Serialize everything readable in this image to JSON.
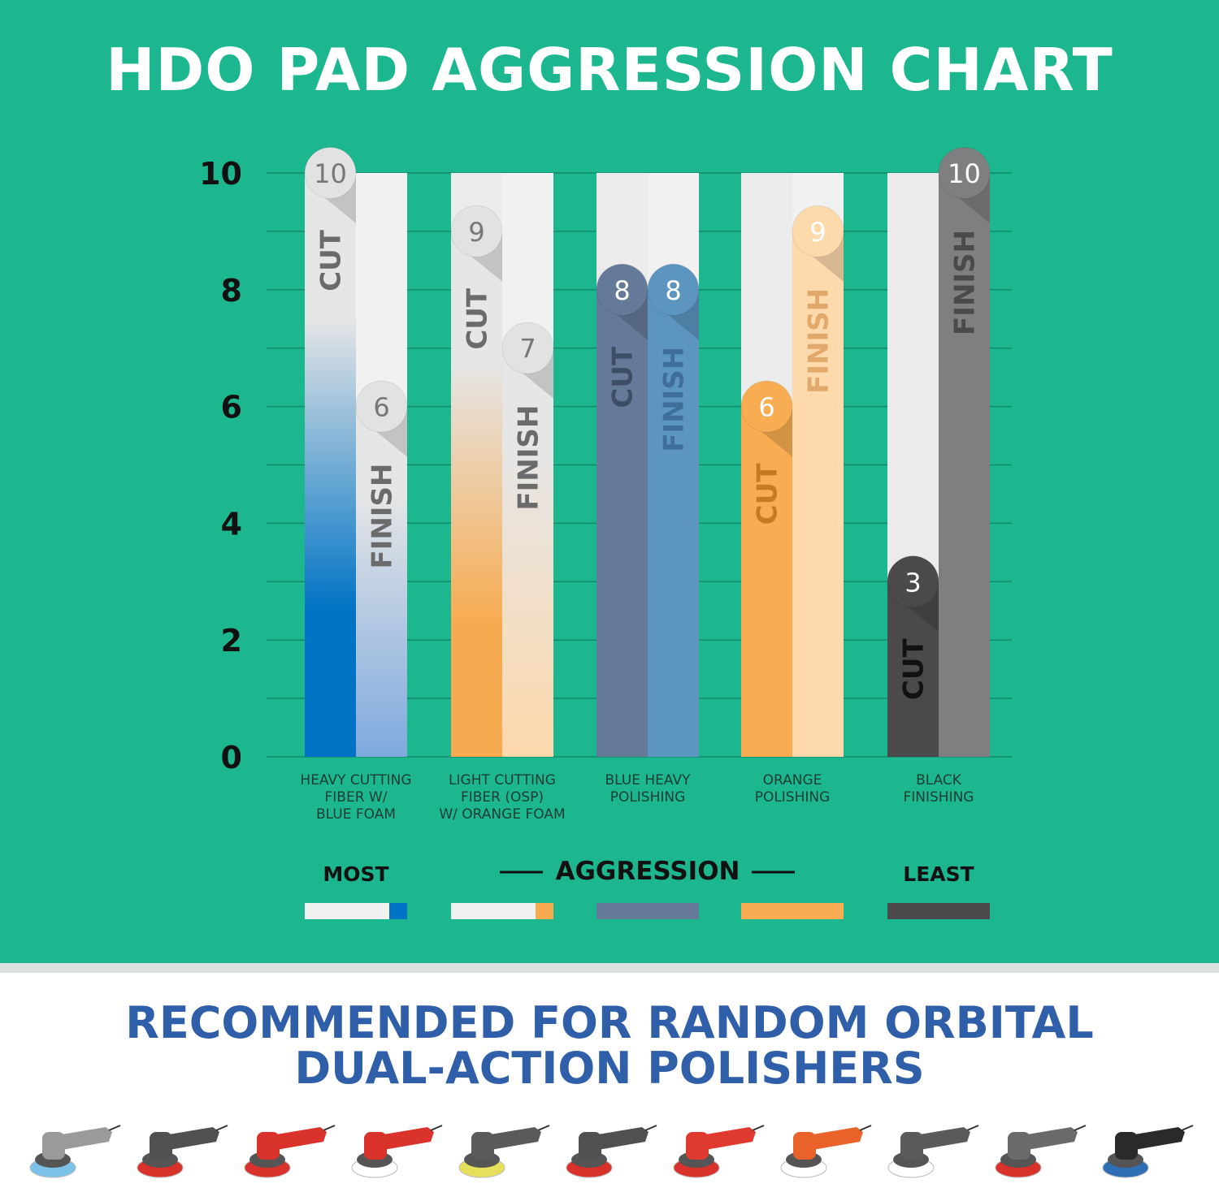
{
  "title": "HDO PAD AGGRESSION CHART",
  "chart_data": {
    "type": "bar",
    "title": "HDO PAD AGGRESSION CHART",
    "ylim": [
      0,
      10
    ],
    "yticks": [
      "0",
      "2",
      "4",
      "6",
      "8",
      "10"
    ],
    "grid": true,
    "categories": [
      [
        "HEAVY CUTTING",
        "FIBER W/",
        "BLUE FOAM"
      ],
      [
        "LIGHT CUTTING",
        "FIBER (OSP)",
        "W/ ORANGE FOAM"
      ],
      [
        "BLUE HEAVY",
        "POLISHING"
      ],
      [
        "ORANGE",
        "POLISHING"
      ],
      [
        "BLACK",
        "FINISHING"
      ]
    ],
    "series": [
      {
        "name": "CUT",
        "values": [
          10,
          9,
          8,
          6,
          3
        ]
      },
      {
        "name": "FINISH",
        "values": [
          6,
          7,
          8,
          9,
          10
        ]
      }
    ],
    "colors": {
      "cut": [
        "#0073c4",
        "#f7ab50",
        "#657a99",
        "#f8ad52",
        "#4a4a4c"
      ],
      "finish": [
        "#7ea9de",
        "#fcd8ab",
        "#5b95c0",
        "#fdd9ac",
        "#7e7f81"
      ]
    }
  },
  "legend": {
    "most": "MOST",
    "aggression": "AGGRESSION",
    "least": "LEAST",
    "swatches": [
      {
        "left": "#f0f0f0",
        "right": "#0073c4"
      },
      {
        "left": "#f0f0f0",
        "right": "#f7ab50"
      },
      {
        "left": "#657a99",
        "right": "#657a99"
      },
      {
        "left": "#f8ad52",
        "right": "#f8ad52"
      },
      {
        "left": "#4a4a4c",
        "right": "#4a4a4c"
      }
    ]
  },
  "recommendation": {
    "line1": "RECOMMENDED FOR RANDOM ORBITAL",
    "line2": "DUAL-ACTION POLISHERS"
  },
  "polishers": [
    {
      "pad": "#7cc2e8",
      "body": "#9a9a9a"
    },
    {
      "pad": "#d8322b",
      "body": "#505050"
    },
    {
      "pad": "#d8322b",
      "body": "#d8322b"
    },
    {
      "pad": "#ffffff",
      "body": "#d8322b"
    },
    {
      "pad": "#e6df5a",
      "body": "#5a5a5a"
    },
    {
      "pad": "#d8322b",
      "body": "#505050"
    },
    {
      "pad": "#d8322b",
      "body": "#e03a30"
    },
    {
      "pad": "#ffffff",
      "body": "#e8622a"
    },
    {
      "pad": "#ffffff",
      "body": "#5a5a5a"
    },
    {
      "pad": "#d8322b",
      "body": "#6a6a6a"
    },
    {
      "pad": "#2e6fb4",
      "body": "#2a2a2a"
    }
  ]
}
